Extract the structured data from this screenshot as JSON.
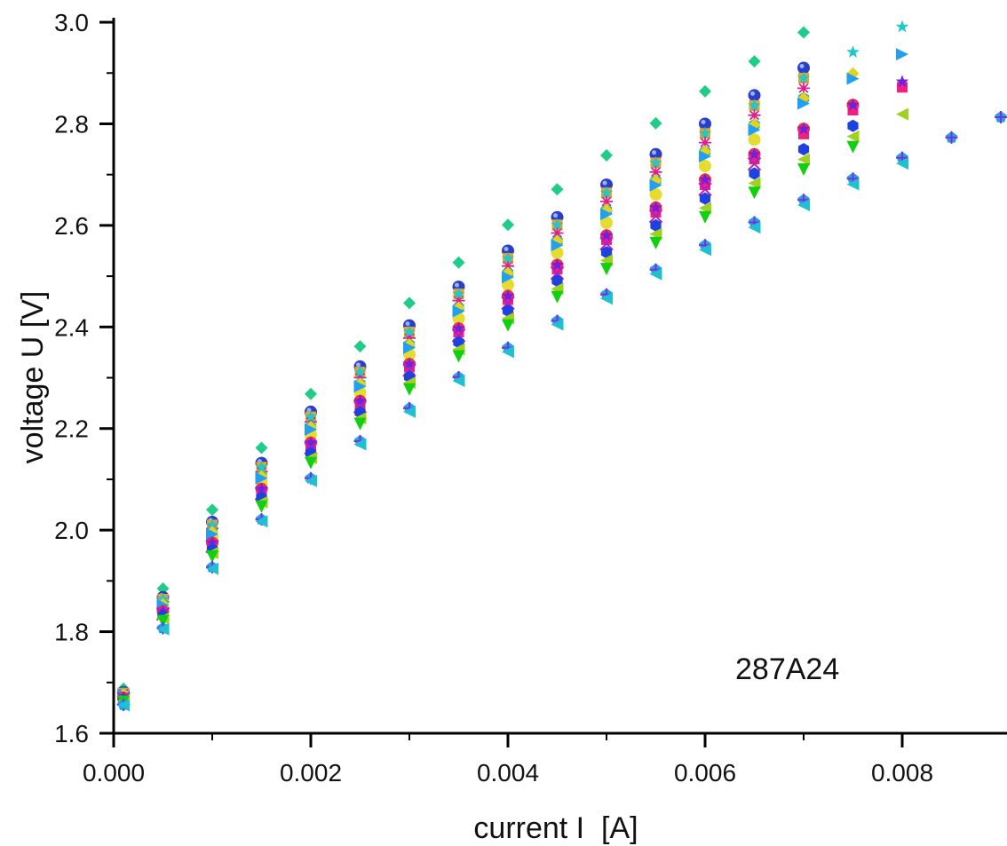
{
  "chart_data": {
    "type": "scatter",
    "title": "",
    "xlabel": "current I  [A]",
    "ylabel": "voltage U [V]",
    "xlim": [
      0,
      0.009
    ],
    "ylim": [
      1.6,
      3.0
    ],
    "grid": false,
    "legend": "none",
    "x_ticks": [
      "0.000",
      "0.002",
      "0.004",
      "0.006",
      "0.008"
    ],
    "x_tick_values": [
      0,
      0.002,
      0.004,
      0.006,
      0.008
    ],
    "y_ticks": [
      "1.6",
      "1.8",
      "2.0",
      "2.2",
      "2.4",
      "2.6",
      "2.8",
      "3.0"
    ],
    "y_tick_values": [
      1.6,
      1.8,
      2.0,
      2.2,
      2.4,
      2.6,
      2.8,
      3.0
    ],
    "annotation": "287A24",
    "x": [
      0.0001,
      0.0005,
      0.001,
      0.0015,
      0.002,
      0.0025,
      0.003,
      0.0035,
      0.004,
      0.0045,
      0.005,
      0.0055,
      0.006,
      0.0065,
      0.007,
      0.0075,
      0.008,
      0.0085,
      0.009
    ],
    "series": [
      {
        "name": "green-diamond",
        "marker": "diamond",
        "color": "#1fcc88",
        "values": [
          1.688,
          1.885,
          2.04,
          2.162,
          2.268,
          2.362,
          2.447,
          2.527,
          2.601,
          2.671,
          2.738,
          2.801,
          2.864,
          2.923,
          2.98
        ]
      },
      {
        "name": "blue-ball",
        "marker": "ball",
        "color": "#2a3fc8",
        "values": [
          1.681,
          1.868,
          2.016,
          2.132,
          2.233,
          2.322,
          2.403,
          2.479,
          2.55,
          2.616,
          2.68,
          2.74,
          2.8,
          2.856,
          2.91
        ]
      },
      {
        "name": "orange-square",
        "marker": "square",
        "color": "#f0a020",
        "values": [
          1.679,
          1.864,
          2.01,
          2.124,
          2.223,
          2.311,
          2.39,
          2.465,
          2.535,
          2.601,
          2.664,
          2.723,
          2.781,
          2.836,
          2.89
        ]
      },
      {
        "name": "magenta-asterisk",
        "marker": "asterisk",
        "color": "#e0208a",
        "values": [
          1.678,
          1.859,
          2.003,
          2.115,
          2.213,
          2.3,
          2.378,
          2.452,
          2.52,
          2.585,
          2.647,
          2.705,
          2.763,
          2.817,
          2.87
        ]
      },
      {
        "name": "teal-hexagon",
        "marker": "hexagon",
        "color": "#20c090",
        "values": [
          1.676,
          1.854,
          1.996,
          2.106,
          2.203,
          2.288,
          2.365,
          2.438,
          2.506,
          2.569,
          2.63,
          2.688,
          2.745,
          2.798,
          2.85
        ]
      },
      {
        "name": "cyan-star",
        "marker": "star",
        "color": "#20c8c8",
        "values": [
          1.679,
          1.864,
          2.01,
          2.124,
          2.223,
          2.311,
          2.39,
          2.465,
          2.535,
          2.601,
          2.664,
          2.723,
          2.781,
          2.836,
          2.89,
          2.941,
          2.991
        ]
      },
      {
        "name": "yellow-diamond",
        "marker": "diamond",
        "color": "#e8d020",
        "values": [
          1.676,
          1.854,
          1.996,
          2.106,
          2.203,
          2.288,
          2.365,
          2.438,
          2.506,
          2.569,
          2.63,
          2.688,
          2.745,
          2.798,
          2.85,
          2.899
        ]
      },
      {
        "name": "yellow-circle",
        "marker": "circle",
        "color": "#e6dc30",
        "values": [
          1.673,
          1.847,
          1.986,
          2.094,
          2.188,
          2.271,
          2.346,
          2.417,
          2.483,
          2.546,
          2.605,
          2.661,
          2.717,
          2.769
        ]
      },
      {
        "name": "blue-right-triangle",
        "marker": "triangle-right",
        "color": "#20a0f0",
        "values": [
          1.675,
          1.852,
          1.992,
          2.102,
          2.198,
          2.283,
          2.359,
          2.431,
          2.498,
          2.561,
          2.622,
          2.679,
          2.736,
          2.788,
          2.84,
          2.889,
          2.937
        ]
      },
      {
        "name": "red-circle",
        "marker": "circle",
        "color": "#f03040",
        "values": [
          1.67,
          1.84,
          1.975,
          2.081,
          2.172,
          2.254,
          2.327,
          2.397,
          2.461,
          2.522,
          2.58,
          2.635,
          2.69,
          2.74,
          2.79,
          2.837
        ]
      },
      {
        "name": "pink-square",
        "marker": "square",
        "color": "#f02080",
        "values": [
          1.669,
          1.838,
          1.972,
          2.076,
          2.167,
          2.249,
          2.321,
          2.39,
          2.454,
          2.514,
          2.572,
          2.626,
          2.68,
          2.731,
          2.78,
          2.827,
          2.872
        ]
      },
      {
        "name": "purple-star",
        "marker": "star",
        "color": "#7020e0",
        "values": [
          1.67,
          1.84,
          1.975,
          2.081,
          2.172,
          2.254,
          2.327,
          2.397,
          2.461,
          2.522,
          2.58,
          2.635,
          2.69,
          2.74,
          2.79,
          2.837,
          2.883
        ]
      },
      {
        "name": "purple-cross",
        "marker": "x",
        "color": "#b020c0",
        "values": [
          1.668,
          1.835,
          1.968,
          2.072,
          2.162,
          2.243,
          2.315,
          2.383,
          2.447,
          2.506,
          2.564,
          2.618,
          2.671,
          2.721
        ]
      },
      {
        "name": "blue-hexagon",
        "marker": "hexagon",
        "color": "#2040e0",
        "values": [
          1.666,
          1.831,
          1.962,
          2.064,
          2.152,
          2.232,
          2.302,
          2.37,
          2.432,
          2.491,
          2.547,
          2.6,
          2.653,
          2.702,
          2.75,
          2.796
        ]
      },
      {
        "name": "lime-left-triangle",
        "marker": "triangle-left",
        "color": "#a0d020",
        "values": [
          1.664,
          1.826,
          1.955,
          2.055,
          2.142,
          2.22,
          2.29,
          2.356,
          2.417,
          2.475,
          2.531,
          2.583,
          2.634,
          2.683,
          2.73,
          2.775,
          2.819
        ]
      },
      {
        "name": "green-down-triangle",
        "marker": "triangle-down",
        "color": "#10d010",
        "values": [
          1.662,
          1.821,
          1.948,
          2.046,
          2.132,
          2.209,
          2.277,
          2.342,
          2.403,
          2.459,
          2.514,
          2.565,
          2.616,
          2.664,
          2.71,
          2.754
        ]
      },
      {
        "name": "lightblue-pentagon",
        "marker": "pentagon",
        "color": "#20a0f0",
        "values": [
          1.656,
          1.807,
          1.927,
          2.021,
          2.102,
          2.175,
          2.24,
          2.301,
          2.359,
          2.412,
          2.464,
          2.513,
          2.561,
          2.606,
          2.65,
          2.692,
          2.733,
          2.773,
          2.813
        ]
      },
      {
        "name": "purple-plus",
        "marker": "plus",
        "color": "#8030d0",
        "values": [
          1.656,
          1.807,
          1.927,
          2.021,
          2.102,
          2.175,
          2.24,
          2.301,
          2.359,
          2.412,
          2.464,
          2.513,
          2.561,
          2.606,
          2.65,
          2.692,
          2.733,
          2.773,
          2.813
        ]
      },
      {
        "name": "cyan-left-triangle",
        "marker": "triangle-left",
        "color": "#20c0d0",
        "values": [
          1.655,
          1.805,
          1.924,
          2.017,
          2.097,
          2.169,
          2.233,
          2.294,
          2.351,
          2.405,
          2.456,
          2.504,
          2.552,
          2.596,
          2.64,
          2.681,
          2.722
        ]
      }
    ]
  }
}
